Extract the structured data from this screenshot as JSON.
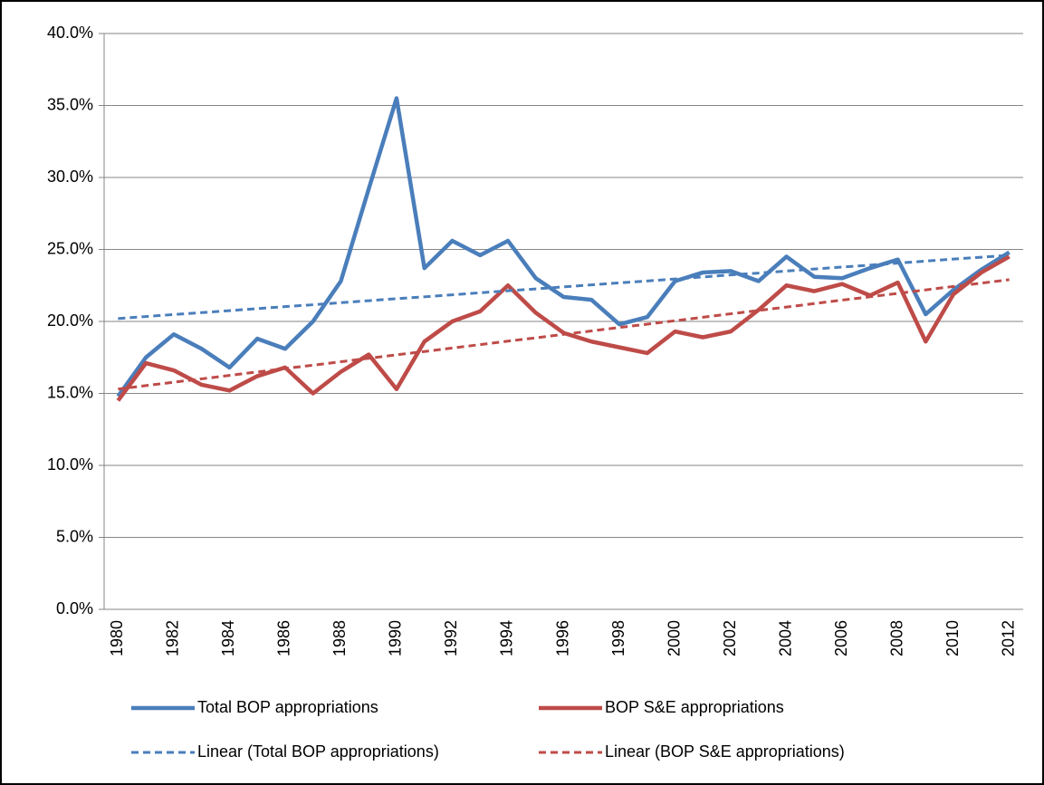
{
  "chart_data": {
    "type": "line",
    "categories": [
      "1980",
      null,
      "1982",
      null,
      "1984",
      null,
      "1986",
      null,
      "1988",
      null,
      "1990",
      null,
      "1992",
      null,
      "1994",
      null,
      "1996",
      null,
      "1998",
      null,
      "2000",
      null,
      "2002",
      null,
      "2004",
      null,
      "2006",
      null,
      "2008",
      null,
      "2010",
      null,
      "2012"
    ],
    "ylim": [
      0,
      40
    ],
    "yticks": [
      {
        "value": 0,
        "label": "0.0%"
      },
      {
        "value": 5,
        "label": "5.0%"
      },
      {
        "value": 10,
        "label": "10.0%"
      },
      {
        "value": 15,
        "label": "15.0%"
      },
      {
        "value": 20,
        "label": "20.0%"
      },
      {
        "value": 25,
        "label": "25.0%"
      },
      {
        "value": 30,
        "label": "30.0%"
      },
      {
        "value": 35,
        "label": "35.0%"
      },
      {
        "value": 40,
        "label": "40.0%"
      }
    ],
    "grid": true,
    "legend": "bottom",
    "series": [
      {
        "name": "Total BOP appropriations",
        "color": "#4a7ebb",
        "dashed": false,
        "values": [
          14.8,
          17.5,
          19.1,
          18.1,
          16.8,
          18.8,
          18.1,
          20.0,
          22.8,
          29.2,
          35.5,
          23.7,
          25.6,
          24.6,
          25.6,
          23.0,
          21.7,
          21.5,
          19.8,
          20.3,
          22.8,
          23.4,
          23.5,
          22.8,
          24.5,
          23.1,
          23.0,
          23.7,
          24.3,
          20.5,
          22.2,
          23.6,
          24.8
        ]
      },
      {
        "name": "BOP S&E appropriations",
        "color": "#be4b48",
        "dashed": false,
        "values": [
          14.5,
          17.1,
          16.6,
          15.6,
          15.2,
          16.2,
          16.8,
          15.0,
          16.5,
          17.7,
          15.3,
          18.6,
          20.0,
          20.7,
          22.5,
          20.6,
          19.2,
          18.6,
          18.2,
          17.8,
          19.3,
          18.9,
          19.3,
          20.8,
          22.5,
          22.1,
          22.6,
          21.8,
          22.7,
          18.6,
          21.9,
          23.4,
          24.5
        ]
      },
      {
        "name": "Linear (Total BOP appropriations)",
        "color": "#4a7ebb",
        "dashed": true,
        "values": [
          20.2,
          20.34,
          20.48,
          20.61,
          20.75,
          20.89,
          21.03,
          21.16,
          21.3,
          21.44,
          21.58,
          21.71,
          21.85,
          21.99,
          22.13,
          22.26,
          22.4,
          22.54,
          22.68,
          22.81,
          22.95,
          23.09,
          23.23,
          23.36,
          23.5,
          23.64,
          23.78,
          23.91,
          24.05,
          24.19,
          24.33,
          24.46,
          24.6
        ]
      },
      {
        "name": "Linear (BOP S&E appropriations)",
        "color": "#be4b48",
        "dashed": true,
        "values": [
          15.3,
          15.54,
          15.78,
          16.01,
          16.25,
          16.49,
          16.73,
          16.96,
          17.2,
          17.44,
          17.68,
          17.91,
          18.15,
          18.39,
          18.63,
          18.86,
          19.1,
          19.34,
          19.58,
          19.81,
          20.05,
          20.29,
          20.53,
          20.76,
          21.0,
          21.24,
          21.48,
          21.71,
          21.95,
          22.19,
          22.43,
          22.66,
          22.9
        ]
      }
    ]
  }
}
